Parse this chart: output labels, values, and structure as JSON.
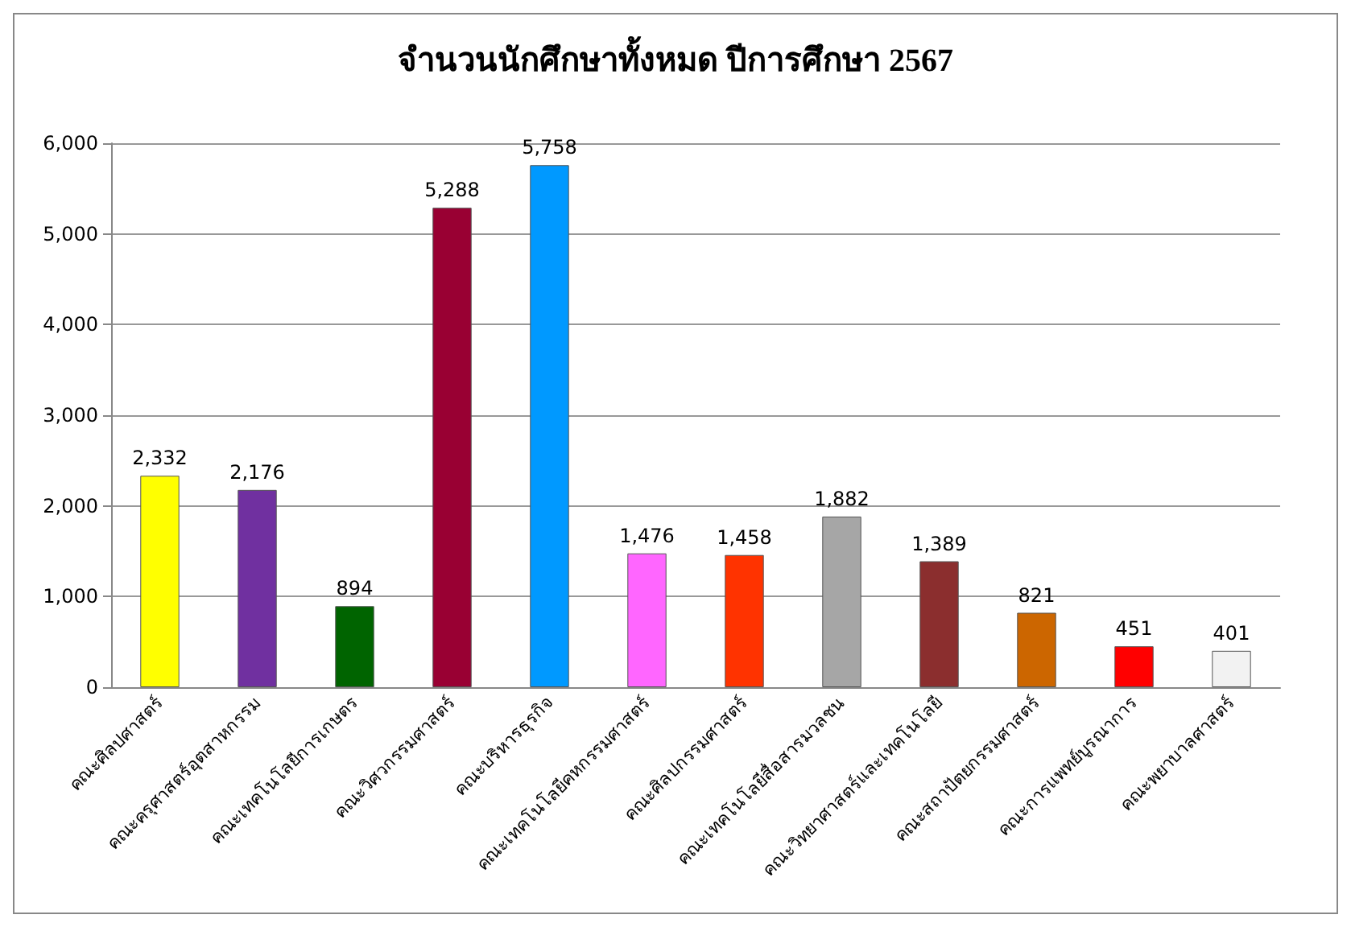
{
  "chart_data": {
    "type": "bar",
    "title": "จำนวนนักศึกษาทั้งหมด ปีการศึกษา 2567",
    "categories": [
      "คณะศิลปศาสตร์",
      "คณะครุศาสตร์อุตสาหกรรม",
      "คณะเทคโนโลยีการเกษตร",
      "คณะวิศวกรรมศาสตร์",
      "คณะบริหารธุรกิจ",
      "คณะเทคโนโลยีคหกรรมศาสตร์",
      "คณะศิลปกรรมศาสตร์",
      "คณะเทคโนโลยีสื่อสารมวลชน",
      "คณะวิทยาศาสตร์และเทคโนโลยี",
      "คณะสถาปัตยกรรมศาสตร์",
      "คณะการแพทย์บูรณาการ",
      "คณะพยาบาลศาสตร์"
    ],
    "values": [
      2332,
      2176,
      894,
      5288,
      5758,
      1476,
      1458,
      1882,
      1389,
      821,
      451,
      401
    ],
    "value_labels": [
      "2,332",
      "2,176",
      "894",
      "5,288",
      "5,758",
      "1,476",
      "1,458",
      "1,882",
      "1,389",
      "821",
      "451",
      "401"
    ],
    "colors": [
      "#ffff00",
      "#7030a0",
      "#006400",
      "#990033",
      "#0099ff",
      "#ff66ff",
      "#ff3300",
      "#a6a6a6",
      "#8b2e2e",
      "#cc6600",
      "#ff0000",
      "#f2f2f2"
    ],
    "ylim": [
      0,
      6000
    ],
    "yticks": [
      {
        "value": 0,
        "label": "0"
      },
      {
        "value": 1000,
        "label": "1,000"
      },
      {
        "value": 2000,
        "label": "2,000"
      },
      {
        "value": 3000,
        "label": "3,000"
      },
      {
        "value": 4000,
        "label": "4,000"
      },
      {
        "value": 5000,
        "label": "5,000"
      },
      {
        "value": 6000,
        "label": "6,000"
      }
    ],
    "grid": "y"
  }
}
